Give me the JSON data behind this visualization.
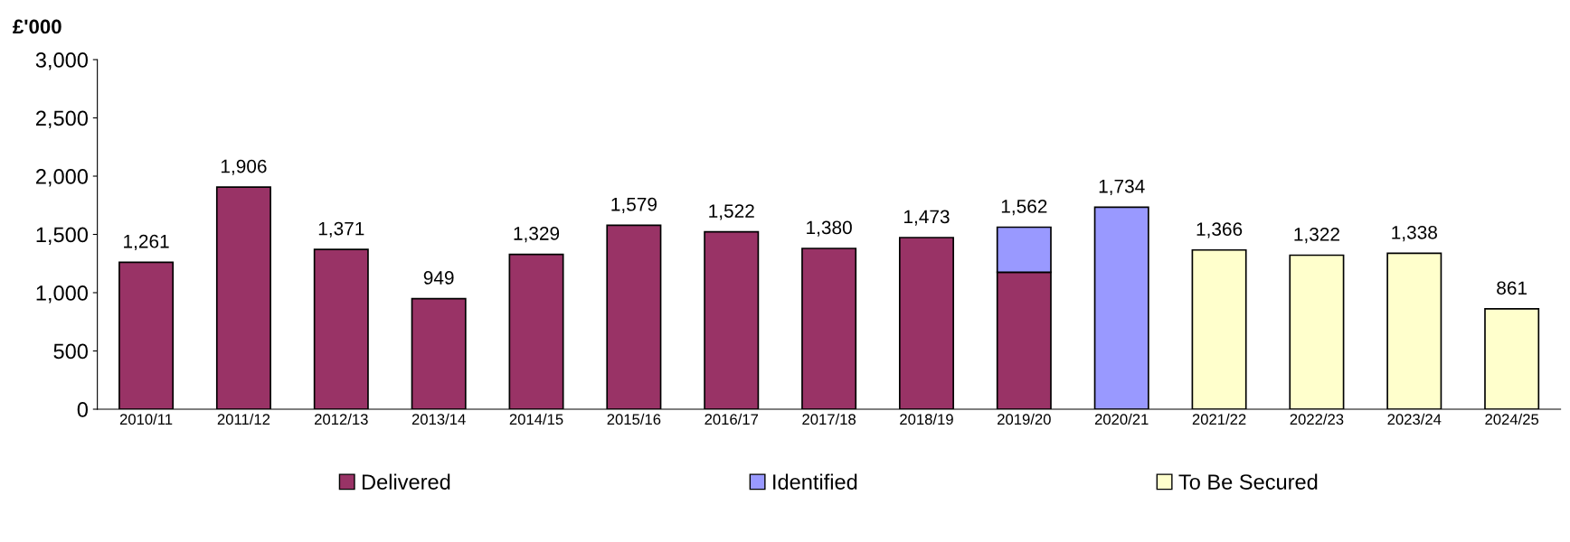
{
  "chart_data": {
    "type": "bar",
    "stacked": true,
    "ylabel": "£'000",
    "categories": [
      "2010/11",
      "2011/12",
      "2012/13",
      "2013/14",
      "2014/15",
      "2015/16",
      "2016/17",
      "2017/18",
      "2018/19",
      "2019/20",
      "2020/21",
      "2021/22",
      "2022/23",
      "2023/24",
      "2024/25"
    ],
    "series": [
      {
        "name": "Delivered",
        "color": "#993366",
        "values": [
          1261,
          1906,
          1371,
          949,
          1329,
          1579,
          1522,
          1380,
          1473,
          1175,
          null,
          null,
          null,
          null,
          null
        ]
      },
      {
        "name": "Identified",
        "color": "#9999ff",
        "values": [
          null,
          null,
          null,
          null,
          null,
          null,
          null,
          null,
          null,
          387,
          1734,
          null,
          null,
          null,
          null
        ]
      },
      {
        "name": "To Be Secured",
        "color": "#ffffcc",
        "values": [
          null,
          null,
          null,
          null,
          null,
          null,
          null,
          null,
          null,
          null,
          null,
          1366,
          1322,
          1338,
          861
        ]
      }
    ],
    "totals": [
      "1,261",
      "1,906",
      "1,371",
      "949",
      "1,329",
      "1,579",
      "1,522",
      "1,380",
      "1,473",
      "1,562",
      "1,734",
      "1,366",
      "1,322",
      "1,338",
      "861"
    ],
    "ylim": [
      0,
      3000
    ],
    "yticks": [
      0,
      {
        "value": 500,
        "label": "500"
      },
      {
        "value": 1000,
        "label": "1,000"
      },
      {
        "value": 1500,
        "label": "1,500"
      },
      {
        "value": 2000,
        "label": "2,000"
      },
      {
        "value": 2500,
        "label": "2,500"
      },
      {
        "value": 3000,
        "label": "3,000"
      }
    ],
    "grid": false,
    "legend": "bottom"
  }
}
